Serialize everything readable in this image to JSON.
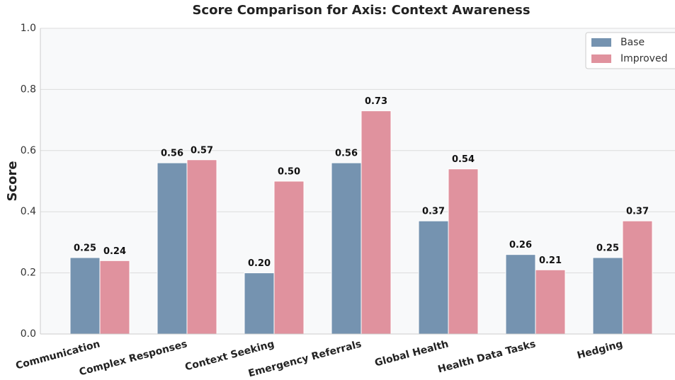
{
  "chart_data": {
    "type": "bar",
    "title": "Score Comparison for Axis: Context Awareness",
    "y_label": "Score",
    "categories": [
      "Communication",
      "Complex Responses",
      "Context Seeking",
      "Emergency Referrals",
      "Global Health",
      "Health Data Tasks",
      "Hedging"
    ],
    "series": [
      {
        "name": "Base",
        "color": "#7593b0",
        "values": [
          0.25,
          0.56,
          0.2,
          0.56,
          0.37,
          0.26,
          0.25
        ],
        "value_labels": [
          "0.25",
          "0.56",
          "0.20",
          "0.56",
          "0.37",
          "0.26",
          "0.25"
        ]
      },
      {
        "name": "Improved",
        "color": "#e0929e",
        "values": [
          0.24,
          0.57,
          0.5,
          0.73,
          0.54,
          0.21,
          0.37
        ],
        "value_labels": [
          "0.24",
          "0.57",
          "0.50",
          "0.73",
          "0.54",
          "0.21",
          "0.37"
        ]
      }
    ],
    "ylim": [
      0,
      1
    ],
    "yticks": [
      {
        "value": 0,
        "label": "0.0"
      },
      {
        "value": 0.2,
        "label": "0.2"
      },
      {
        "value": 0.4,
        "label": "0.4"
      },
      {
        "value": 0.6,
        "label": "0.6"
      },
      {
        "value": 0.8,
        "label": "0.8"
      },
      {
        "value": 1,
        "label": "1.0"
      }
    ],
    "grid": true,
    "legend": "upper right"
  }
}
